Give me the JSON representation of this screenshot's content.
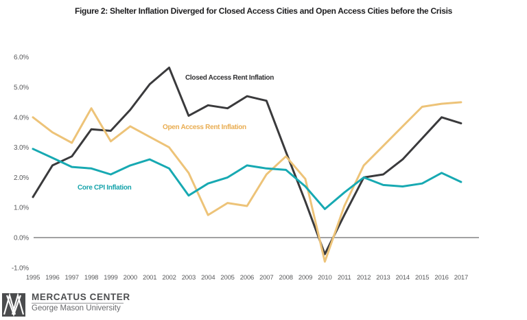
{
  "title": "Figure 2: Shelter Inflation Diverged for Closed Access Cities and Open Access Cities before the Crisis",
  "chart_data": {
    "type": "line",
    "x": [
      1995,
      1996,
      1997,
      1998,
      1999,
      2000,
      2001,
      2002,
      2003,
      2004,
      2005,
      2006,
      2007,
      2008,
      2009,
      2010,
      2011,
      2012,
      2013,
      2014,
      2015,
      2016,
      2017
    ],
    "ylim": [
      -1,
      6
    ],
    "grid": "none",
    "zero_line": true,
    "legend_position": "inline-annotations",
    "axis_color": "#58595b",
    "zero_line_color": "#434345",
    "y_ticks": [
      {
        "label": "6.0%",
        "value": 6
      },
      {
        "label": "5.0%",
        "value": 5
      },
      {
        "label": "4.0%",
        "value": 4
      },
      {
        "label": "3.0%",
        "value": 3
      },
      {
        "label": "2.0%",
        "value": 2
      },
      {
        "label": "1.0%",
        "value": 1
      },
      {
        "label": "0.0%",
        "value": 0
      },
      {
        "label": "-1.0%",
        "value": -1
      }
    ],
    "series": [
      {
        "name": "Closed Access Rent Inflation",
        "color": "#3a3a3c",
        "label_color": "#2f2f31",
        "values": [
          1.35,
          2.4,
          2.7,
          3.6,
          3.55,
          4.25,
          5.1,
          5.65,
          4.05,
          4.4,
          4.3,
          4.7,
          4.55,
          2.85,
          1.2,
          -0.55,
          0.75,
          2.0,
          2.1,
          2.6,
          3.3,
          4.0,
          3.8
        ]
      },
      {
        "name": "Open Access Rent Inflation",
        "color": "#edc378",
        "label_color": "#e9ad52",
        "values": [
          4.0,
          3.5,
          3.15,
          4.3,
          3.2,
          3.7,
          3.35,
          3.0,
          2.15,
          0.75,
          1.15,
          1.05,
          2.1,
          2.7,
          1.95,
          -0.8,
          1.05,
          2.4,
          3.05,
          3.7,
          4.35,
          4.45,
          4.5
        ]
      },
      {
        "name": "Core CPI Inflation",
        "color": "#17a9b2",
        "label_color": "#16a3ab",
        "values": [
          2.95,
          2.65,
          2.35,
          2.3,
          2.1,
          2.4,
          2.6,
          2.3,
          1.4,
          1.8,
          2.0,
          2.4,
          2.3,
          2.25,
          1.7,
          0.95,
          1.5,
          2.0,
          1.75,
          1.7,
          1.8,
          2.15,
          1.85
        ]
      }
    ]
  },
  "footer": {
    "org": "MERCATUS CENTER",
    "university": "George Mason University"
  }
}
